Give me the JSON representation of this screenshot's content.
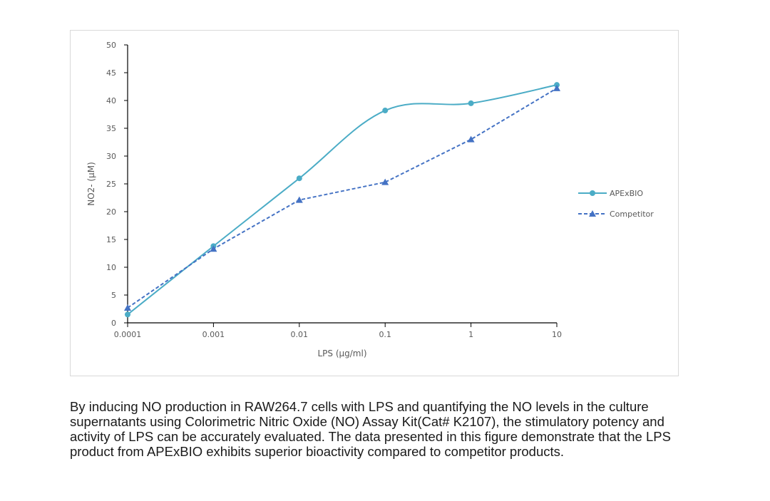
{
  "chart_data": {
    "type": "line",
    "x_scale": "log",
    "x": [
      0.0001,
      0.001,
      0.01,
      0.1,
      1,
      10
    ],
    "x_tick_labels": [
      "0.0001",
      "0.001",
      "0.01",
      "0.1",
      "1",
      "10"
    ],
    "ylim": [
      0,
      50
    ],
    "y_ticks": [
      0,
      5,
      10,
      15,
      20,
      25,
      30,
      35,
      40,
      45,
      50
    ],
    "xlabel": "LPS (μg/ml)",
    "ylabel": "NO2- (μM)",
    "grid": false,
    "legend_position": "right",
    "series": [
      {
        "name": "APExBIO",
        "values": [
          1.5,
          13.8,
          26.0,
          38.2,
          39.5,
          42.8
        ],
        "color": "#4bacc6",
        "marker": "circle",
        "line_style": "solid-smooth"
      },
      {
        "name": "Competitor",
        "values": [
          2.7,
          13.3,
          22.1,
          25.3,
          33.0,
          42.2
        ],
        "color": "#4472c4",
        "marker": "triangle",
        "line_style": "dashed"
      }
    ]
  },
  "caption": "By inducing NO production in RAW264.7 cells with LPS and quantifying the NO levels in the culture supernatants using Colorimetric Nitric Oxide (NO) Assay Kit(Cat# K2107), the stimulatory potency and activity of LPS can be accurately evaluated. The data presented in this figure demonstrate that the LPS product from APExBIO exhibits superior bioactivity compared to competitor products."
}
